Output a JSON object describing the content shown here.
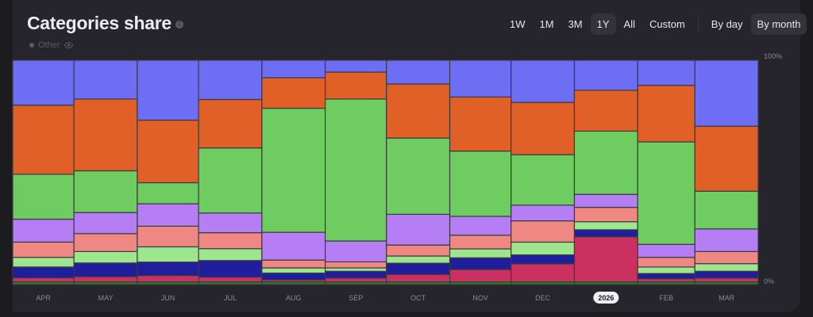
{
  "header": {
    "title": "Categories share",
    "info_icon": "info-icon"
  },
  "legend": {
    "items": [
      {
        "label": "Other",
        "icon": "eye-icon",
        "color": "#5c5a63"
      }
    ]
  },
  "controls": {
    "ranges": [
      {
        "label": "1W",
        "active": false
      },
      {
        "label": "1M",
        "active": false
      },
      {
        "label": "3M",
        "active": false
      },
      {
        "label": "1Y",
        "active": true
      },
      {
        "label": "All",
        "active": false
      },
      {
        "label": "Custom",
        "active": false
      }
    ],
    "granularity": [
      {
        "label": "By day",
        "active": false
      },
      {
        "label": "By month",
        "active": true
      }
    ]
  },
  "chart_data": {
    "type": "bar",
    "stacked": "percent",
    "categories": [
      "APR",
      "MAY",
      "JUN",
      "JUL",
      "AUG",
      "SEP",
      "OCT",
      "NOV",
      "DEC",
      "2026",
      "FEB",
      "MAR"
    ],
    "highlighted_category": "2026",
    "bar_widths_days": [
      30,
      31,
      30,
      31,
      31,
      30,
      31,
      30,
      31,
      31,
      28,
      31
    ],
    "y_ticks": [
      "100%",
      "0%"
    ],
    "ylim": [
      0,
      100
    ],
    "grid": false,
    "series": [
      {
        "color": "#2e7d2a",
        "values": [
          1.2,
          1.2,
          1.2,
          1.2,
          1.2,
          1.2,
          1.2,
          1.2,
          1.2,
          1.2,
          1.2,
          1.2
        ]
      },
      {
        "color": "#cc3060",
        "values": [
          1.8,
          2.3,
          2.8,
          2.1,
          0.9,
          1.7,
          3.3,
          5.5,
          8.0,
          20.1,
          1.4,
          1.7
        ]
      },
      {
        "color": "#1f1f9e",
        "values": [
          4.8,
          6.1,
          6.0,
          7.4,
          3.0,
          3.0,
          5.0,
          5.2,
          4.0,
          3.1,
          2.3,
          3.0
        ]
      },
      {
        "color": "#9ee68e",
        "values": [
          4.3,
          5.1,
          6.8,
          5.3,
          2.3,
          1.5,
          3.2,
          4.0,
          5.7,
          3.6,
          2.9,
          3.4
        ]
      },
      {
        "color": "#ef8882",
        "values": [
          6.8,
          8.0,
          9.2,
          7.1,
          3.5,
          2.7,
          4.9,
          6.1,
          9.5,
          6.4,
          4.3,
          5.4
        ]
      },
      {
        "color": "#b57ef5",
        "values": [
          10.2,
          9.4,
          10.0,
          8.8,
          12.4,
          9.3,
          13.7,
          8.4,
          7.0,
          5.8,
          5.8,
          10.1
        ]
      },
      {
        "color": "#6fcc60",
        "values": [
          20.0,
          18.6,
          9.4,
          29.0,
          55.3,
          63.3,
          34.0,
          29.1,
          22.5,
          28.2,
          45.7,
          16.8
        ]
      },
      {
        "color": "#e06028",
        "values": [
          30.8,
          32.0,
          27.9,
          21.6,
          13.6,
          12.0,
          24.1,
          24.1,
          23.3,
          18.2,
          25.2,
          29.0
        ]
      },
      {
        "color": "#6e6ef5",
        "values": [
          20.0,
          17.3,
          26.7,
          17.5,
          7.8,
          5.3,
          10.6,
          16.4,
          18.8,
          13.4,
          11.2,
          29.4
        ]
      }
    ]
  }
}
